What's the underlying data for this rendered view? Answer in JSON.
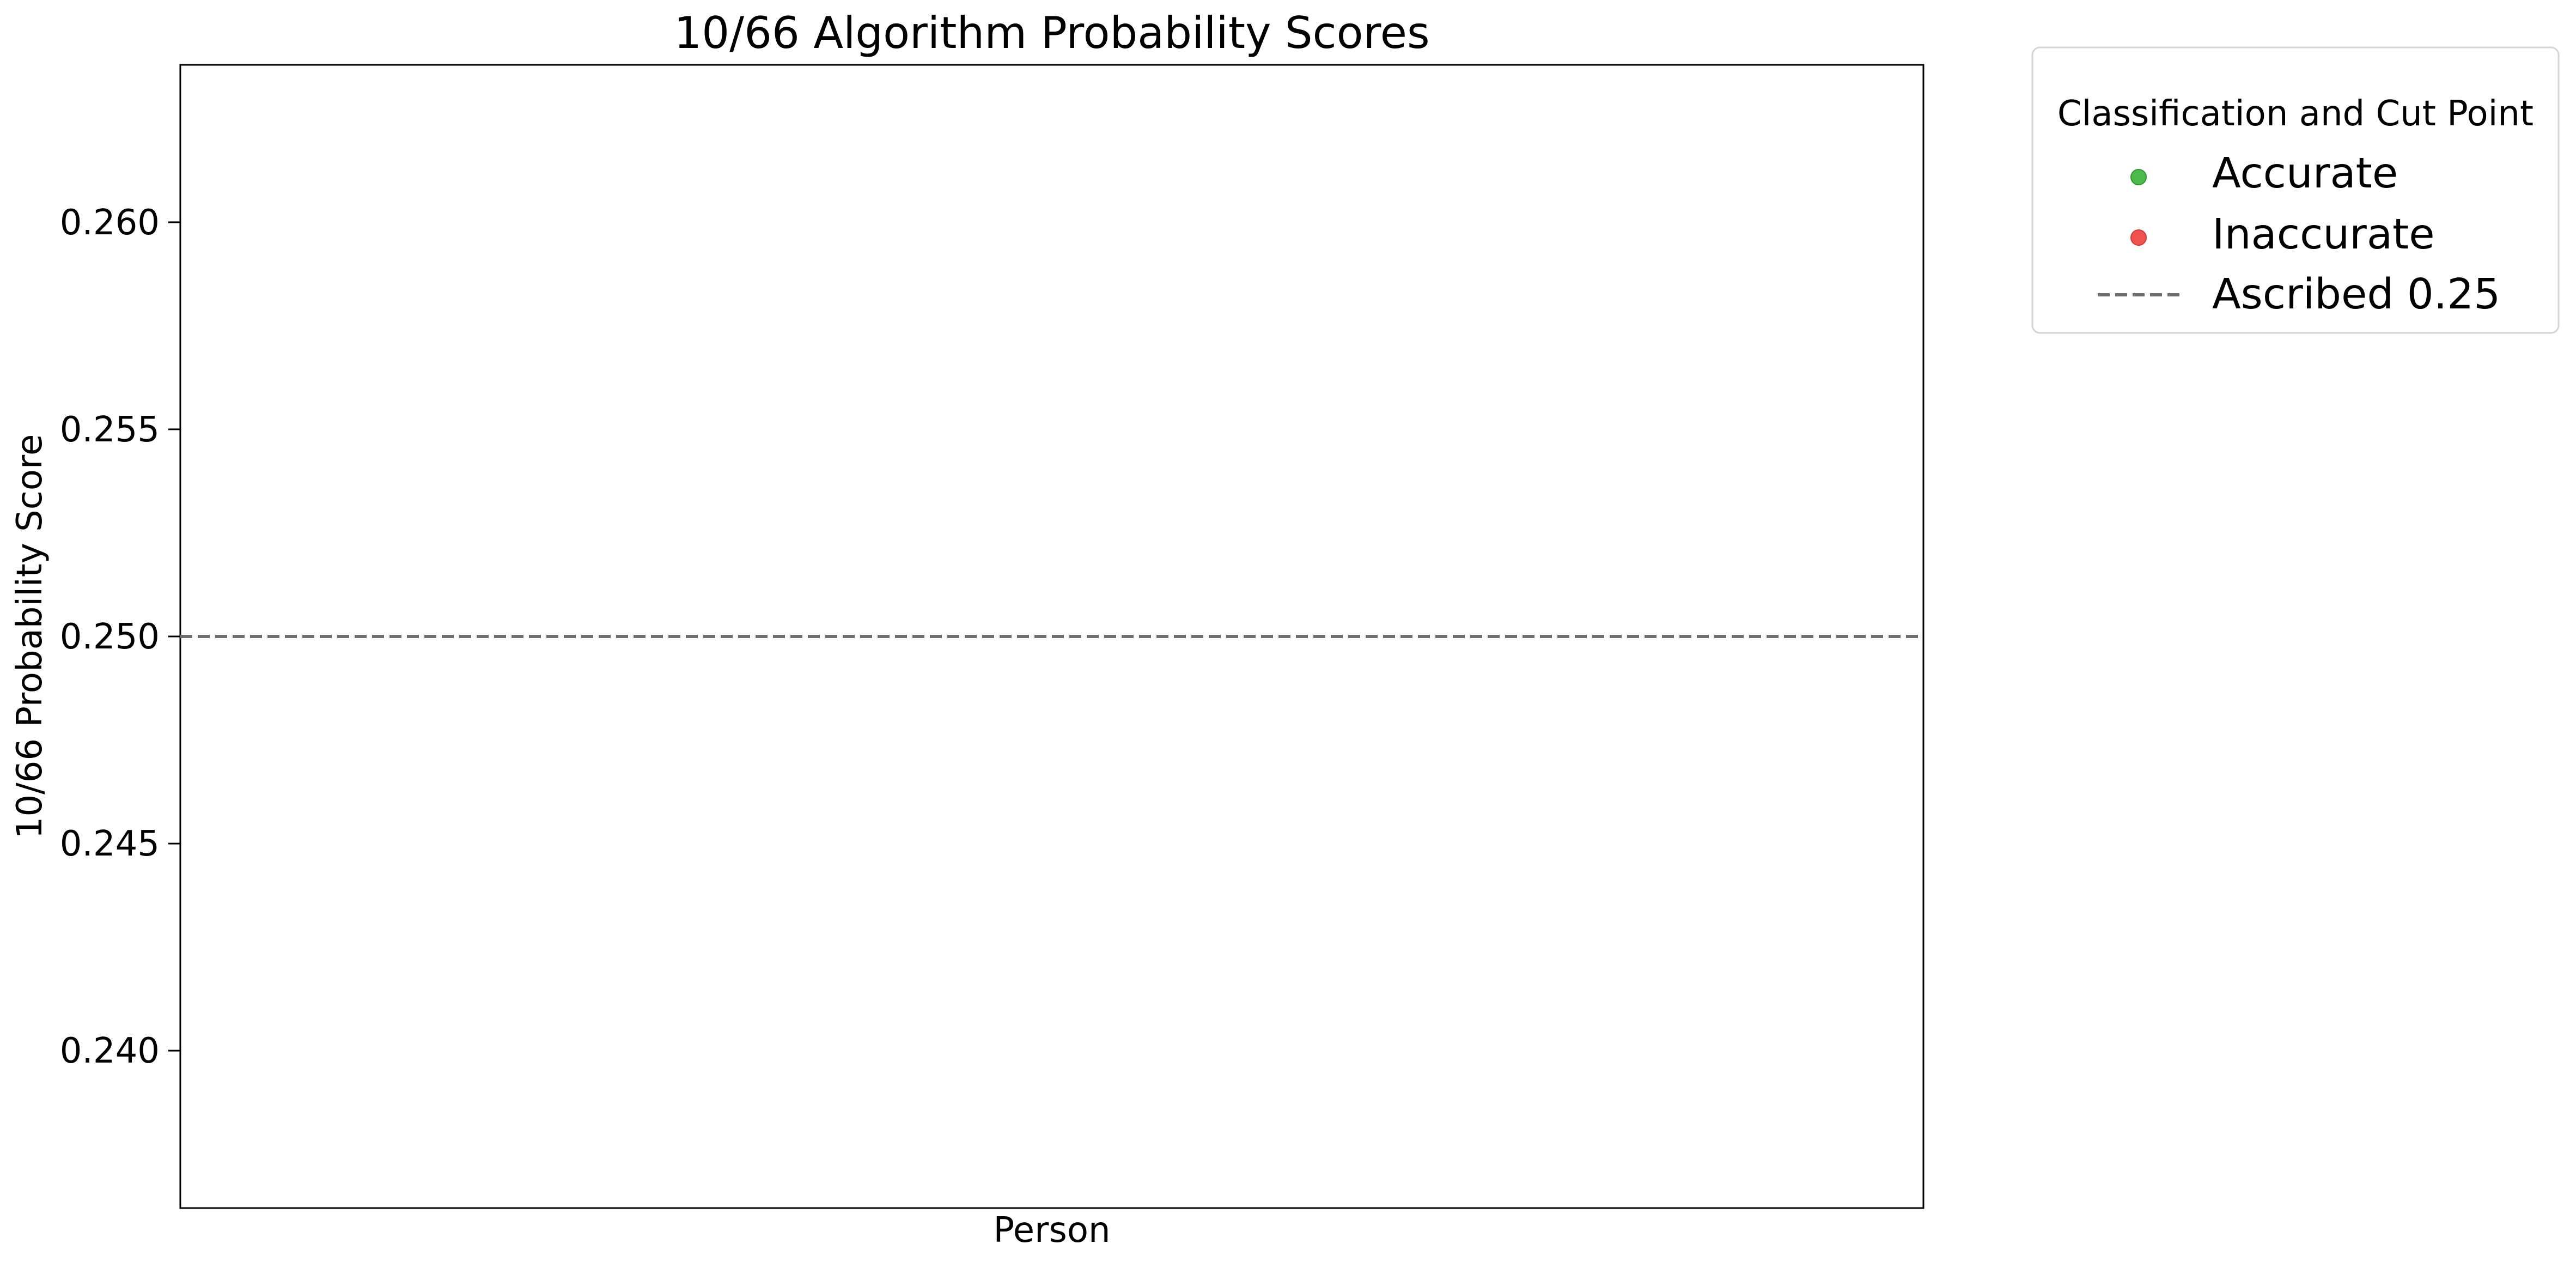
{
  "chart_data": {
    "type": "scatter",
    "title": "10/66 Algorithm Probability Scores",
    "xlabel": "Person",
    "ylabel": "10/66 Probability Score",
    "ylim": [
      0.2362,
      0.2638
    ],
    "yticks": [
      0.24,
      0.245,
      0.25,
      0.255,
      0.26
    ],
    "ytick_labels": [
      "0.240",
      "0.245",
      "0.250",
      "0.255",
      "0.260"
    ],
    "grid": false,
    "series": [
      {
        "name": "Accurate",
        "color": "#4cbb4c",
        "points": []
      },
      {
        "name": "Inaccurate",
        "color": "#ef5350",
        "points": []
      }
    ],
    "cut_point": {
      "name": "Ascribed 0.25",
      "value": 0.25,
      "color": "#6e6e6e",
      "style": "dashed"
    },
    "legend": {
      "title": "Classification and Cut Point",
      "placement": "outside-top-right",
      "entries": [
        "Accurate",
        "Inaccurate",
        "Ascribed 0.25"
      ]
    }
  }
}
